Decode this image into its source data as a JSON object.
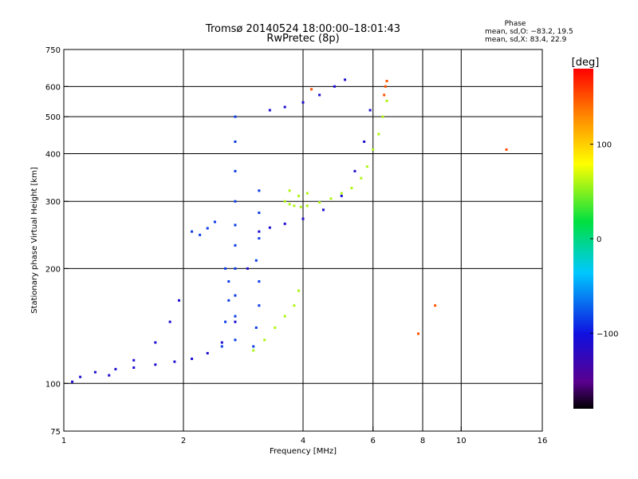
{
  "chart_data": {
    "type": "scatter",
    "title": "Tromsø 20140524 18:00:00–18:01:43",
    "subtitle": "RwPretec (8p)",
    "xlabel": "Frequency [MHz]",
    "ylabel": "Stationary phase Virtual Height [km]",
    "x_scale": "log",
    "y_scale": "log",
    "xlim": [
      1,
      16
    ],
    "ylim": [
      75,
      750
    ],
    "grid": true,
    "x_ticks": [
      1,
      2,
      4,
      6,
      8,
      10,
      16
    ],
    "y_ticks": [
      75,
      100,
      200,
      300,
      400,
      500,
      600,
      750
    ],
    "x_gridlines": [
      2,
      4,
      6,
      8,
      10
    ],
    "y_gridlines": [
      100,
      200,
      300,
      400,
      500,
      600
    ],
    "phase_info": {
      "header": "Phase",
      "line_o": "mean, sd,O: −83.2, 19.5",
      "line_x": "mean, sd,X:  83.4, 22.9"
    },
    "colorbar": {
      "label": "[deg]",
      "range": [
        -180,
        180
      ],
      "ticks": [
        100,
        0,
        -100
      ],
      "tick_labels": [
        "100",
        "0",
        "−100"
      ],
      "colormap": "rainbow (black-purple-blue-cyan-green-yellow-red)"
    },
    "series": [
      {
        "phase": -110,
        "traces": [
          {
            "x": [
              1.05,
              1.1,
              1.2,
              1.35,
              1.5,
              1.7,
              1.9,
              2.1,
              2.3,
              2.5,
              2.7,
              2.9,
              3.1,
              3.3,
              3.6,
              4.0,
              4.5,
              5.0,
              5.4,
              5.7,
              5.9
            ],
            "y": [
              101,
              104,
              107,
              109,
              110,
              112,
              114,
              116,
              120,
              128,
              145,
              200,
              250,
              256,
              262,
              270,
              285,
              310,
              360,
              430,
              520
            ]
          },
          {
            "x": [
              3.3,
              3.6,
              4.0,
              4.4,
              4.8,
              5.1
            ],
            "y": [
              520,
              530,
              545,
              570,
              600,
              625
            ]
          },
          {
            "x": [
              1.3,
              1.5,
              1.7,
              1.85,
              1.95
            ],
            "y": [
              105,
              115,
              128,
              145,
              165
            ]
          }
        ]
      },
      {
        "phase": -85,
        "traces": [
          {
            "x": [
              2.7,
              2.7,
              2.7,
              2.7,
              2.7,
              2.7,
              2.7,
              2.7,
              2.7,
              2.7
            ],
            "y": [
              130,
              150,
              170,
              200,
              230,
              260,
              300,
              360,
              430,
              500
            ]
          },
          {
            "x": [
              3.0,
              3.05,
              3.1,
              3.1,
              3.05,
              3.1,
              3.1,
              3.1
            ],
            "y": [
              125,
              140,
              160,
              185,
              210,
              240,
              280,
              320
            ]
          },
          {
            "x": [
              2.5,
              2.55,
              2.6,
              2.6,
              2.55
            ],
            "y": [
              125,
              145,
              165,
              185,
              200
            ]
          },
          {
            "x": [
              2.1,
              2.2,
              2.3,
              2.4
            ],
            "y": [
              250,
              245,
              255,
              265
            ]
          }
        ]
      },
      {
        "phase": 60,
        "traces": [
          {
            "x": [
              3.6,
              3.7,
              3.8,
              3.95,
              4.1,
              4.4,
              4.7,
              5.0,
              5.3,
              5.6,
              5.8,
              6.0,
              6.2,
              6.35,
              6.5
            ],
            "y": [
              300,
              295,
              292,
              290,
              292,
              298,
              305,
              315,
              325,
              345,
              370,
              410,
              450,
              500,
              550
            ]
          },
          {
            "x": [
              3.7,
              3.9,
              4.1
            ],
            "y": [
              320,
              310,
              315
            ]
          },
          {
            "x": [
              3.0,
              3.2,
              3.4,
              3.6,
              3.8,
              3.9
            ],
            "y": [
              122,
              130,
              140,
              150,
              160,
              175
            ]
          }
        ]
      },
      {
        "phase": 150,
        "traces": [
          {
            "x": [
              6.4,
              6.45,
              6.5
            ],
            "y": [
              570,
              600,
              620
            ]
          },
          {
            "x": [
              4.2,
              7.8,
              8.6,
              13.0
            ],
            "y": [
              590,
              135,
              160,
              410
            ]
          }
        ]
      }
    ]
  }
}
